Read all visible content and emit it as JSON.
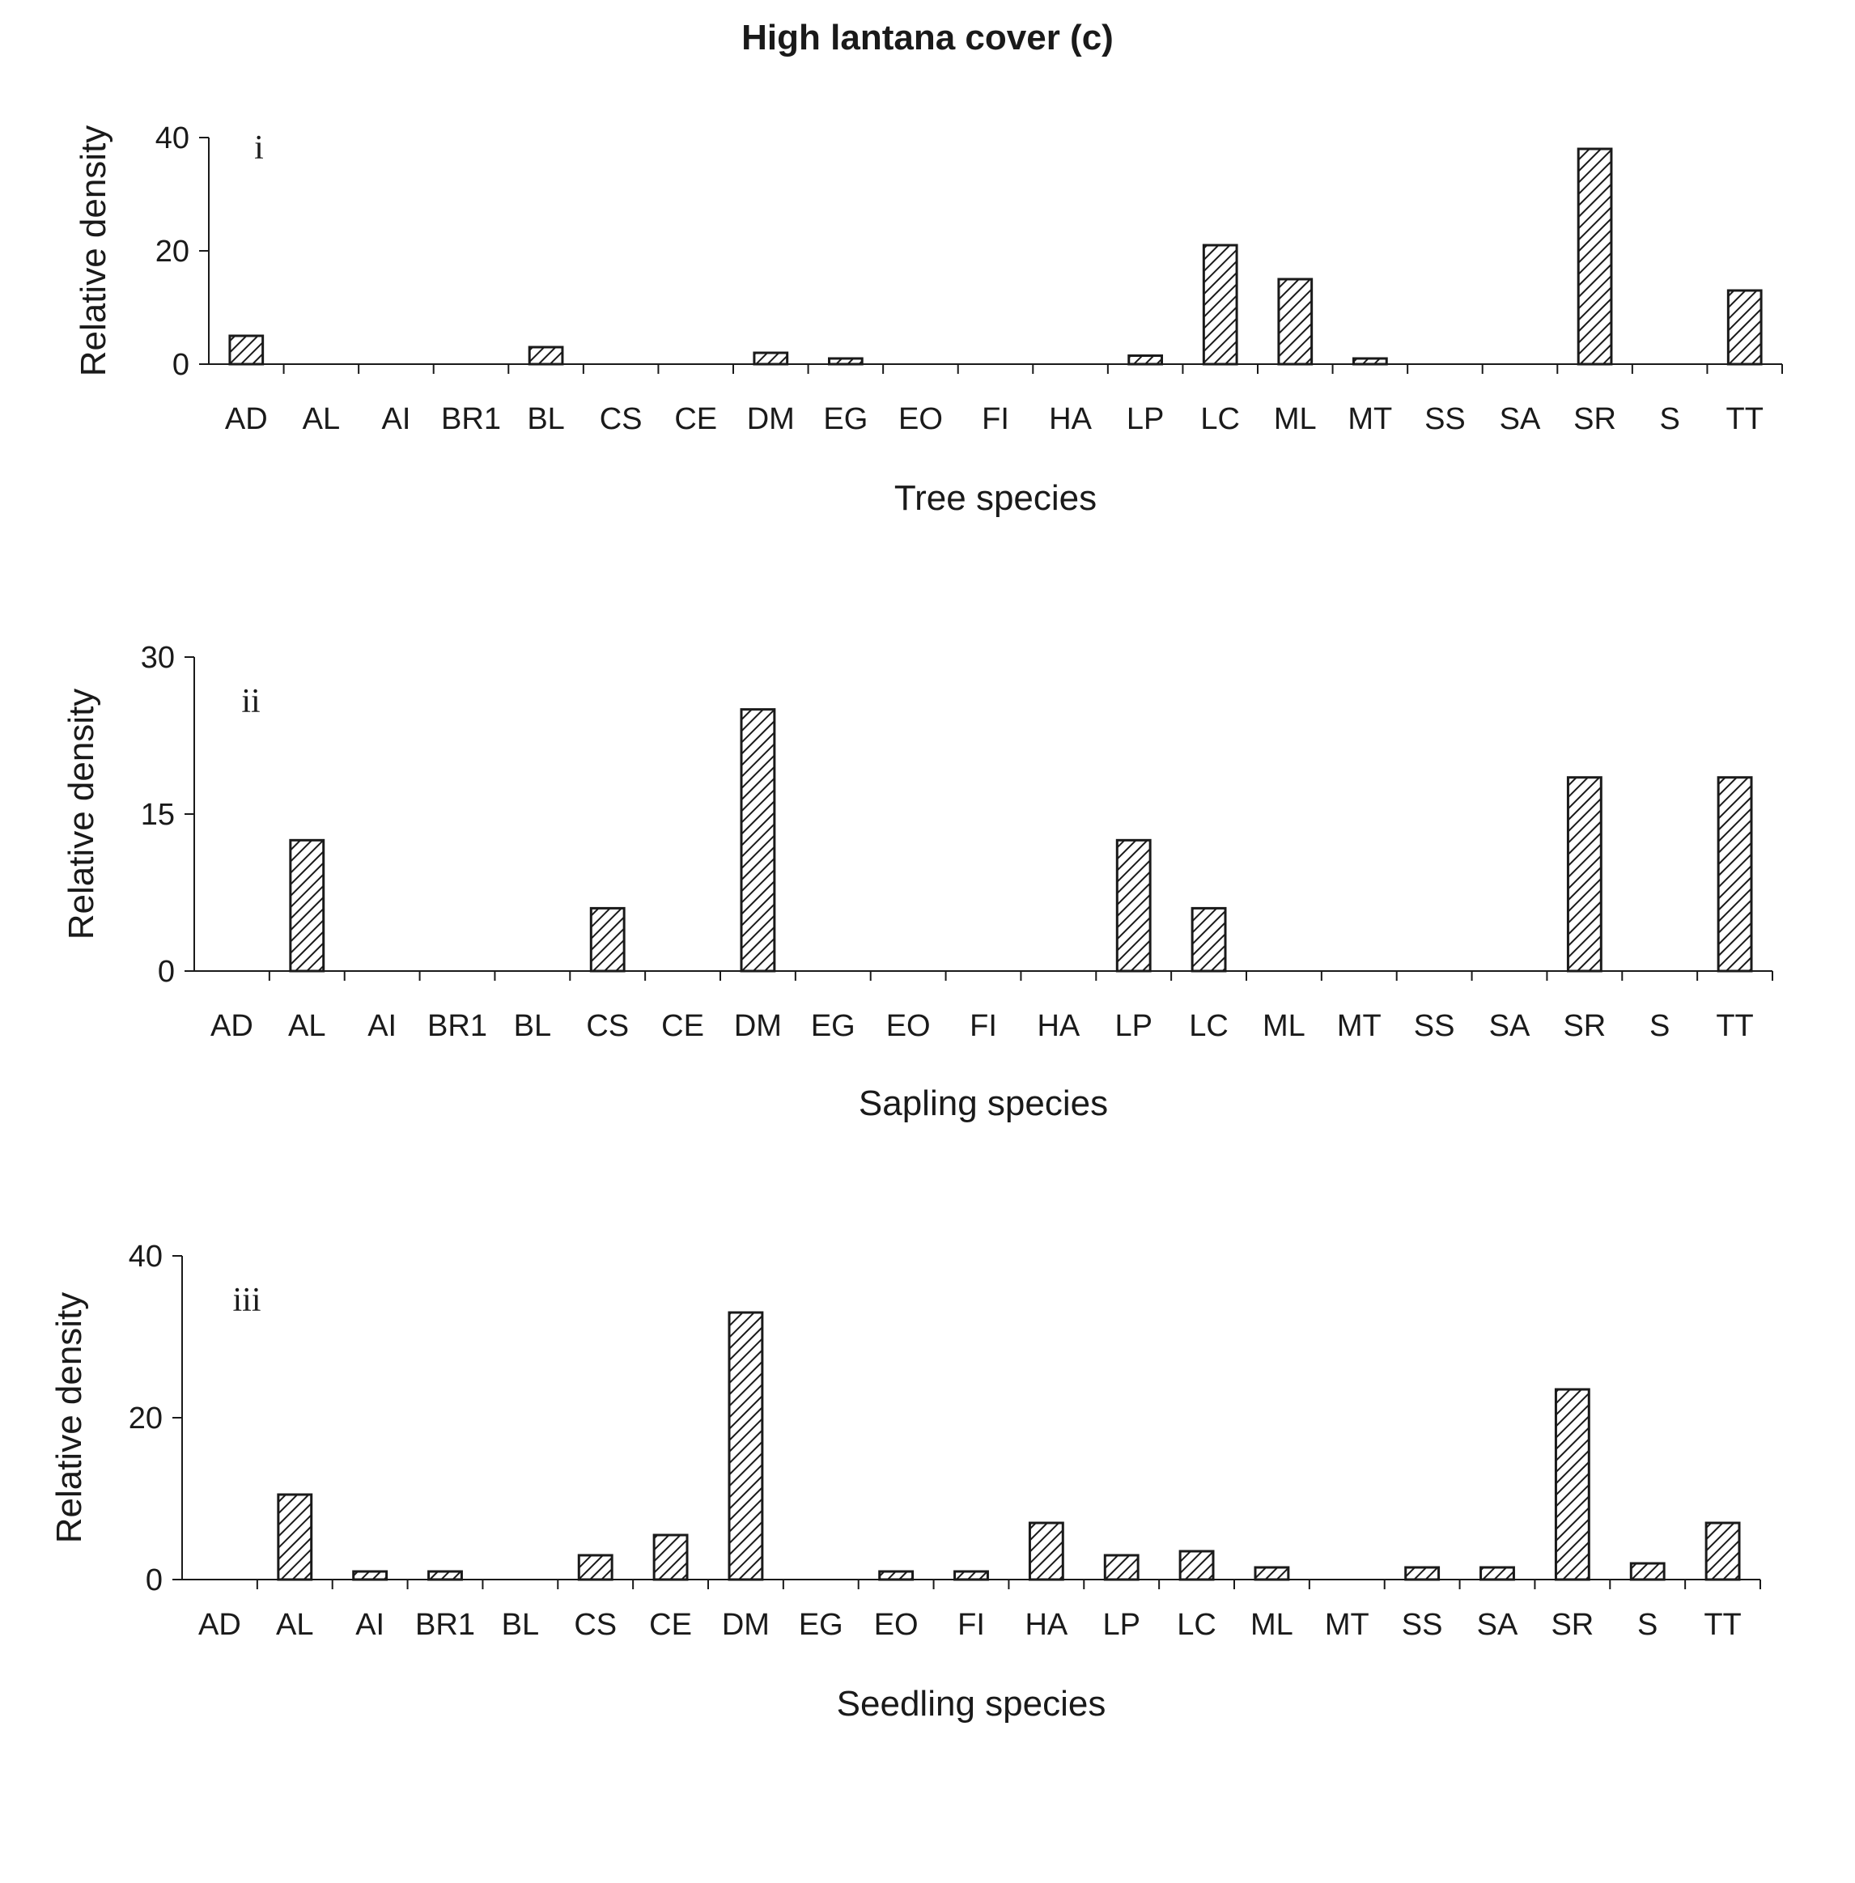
{
  "page": {
    "title": "High lantana cover (c)"
  },
  "chart_data": [
    {
      "type": "bar",
      "panel_label": "i",
      "xlabel": "Tree species",
      "ylabel": "Relative density",
      "ylim": [
        0,
        40
      ],
      "yticks": [
        0,
        20,
        40
      ],
      "grid": false,
      "categories": [
        "AD",
        "AL",
        "AI",
        "BR1",
        "BL",
        "CS",
        "CE",
        "DM",
        "EG",
        "EO",
        "FI",
        "HA",
        "LP",
        "LC",
        "ML",
        "MT",
        "SS",
        "SA",
        "SR",
        "S",
        "TT"
      ],
      "values": [
        5,
        0,
        0,
        0,
        3,
        0,
        0,
        2,
        1,
        0,
        0,
        0,
        1.5,
        21,
        15,
        1,
        0,
        0,
        38,
        0,
        13
      ]
    },
    {
      "type": "bar",
      "panel_label": "ii",
      "xlabel": "Sapling species",
      "ylabel": "Relative density",
      "ylim": [
        0,
        30
      ],
      "yticks": [
        0,
        15,
        30
      ],
      "grid": false,
      "categories": [
        "AD",
        "AL",
        "AI",
        "BR1",
        "BL",
        "CS",
        "CE",
        "DM",
        "EG",
        "EO",
        "FI",
        "HA",
        "LP",
        "LC",
        "ML",
        "MT",
        "SS",
        "SA",
        "SR",
        "S",
        "TT"
      ],
      "values": [
        0,
        12.5,
        0,
        0,
        0,
        6,
        0,
        25,
        0,
        0,
        0,
        0,
        12.5,
        6,
        0,
        0,
        0,
        0,
        18.5,
        0,
        18.5
      ]
    },
    {
      "type": "bar",
      "panel_label": "iii",
      "xlabel": "Seedling species",
      "ylabel": "Relative density",
      "ylim": [
        0,
        40
      ],
      "yticks": [
        0,
        20,
        40
      ],
      "grid": false,
      "categories": [
        "AD",
        "AL",
        "AI",
        "BR1",
        "BL",
        "CS",
        "CE",
        "DM",
        "EG",
        "EO",
        "FI",
        "HA",
        "LP",
        "LC",
        "ML",
        "MT",
        "SS",
        "SA",
        "SR",
        "S",
        "TT"
      ],
      "values": [
        0,
        10.5,
        1,
        1,
        0,
        3,
        5.5,
        33,
        0,
        1,
        1,
        7,
        3,
        3.5,
        1.5,
        0,
        1.5,
        1.5,
        23.5,
        2,
        7
      ]
    }
  ]
}
